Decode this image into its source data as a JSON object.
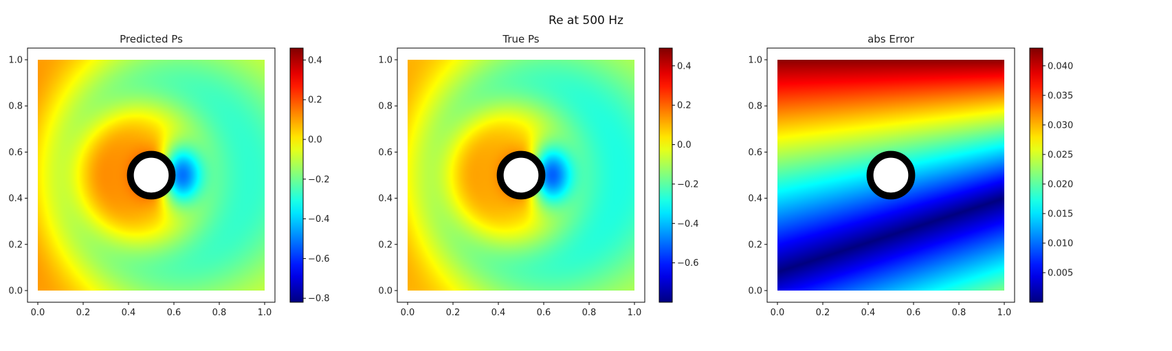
{
  "figure": {
    "suptitle": "Re at 500 Hz"
  },
  "chart_data": [
    {
      "type": "heatmap",
      "title": "Predicted Ps",
      "xlim": [
        0,
        1
      ],
      "ylim": [
        0,
        1
      ],
      "x_ticks": [
        "0.0",
        "0.2",
        "0.4",
        "0.6",
        "0.8",
        "1.0"
      ],
      "y_ticks": [
        "0.0",
        "0.2",
        "0.4",
        "0.6",
        "0.8",
        "1.0"
      ],
      "obstacle": {
        "shape": "circle",
        "center": [
          0.5,
          0.5
        ],
        "radius": 0.1
      },
      "colormap": "jet",
      "colorbar": {
        "min": -0.82,
        "max": 0.46,
        "ticks": [
          0.4,
          0.2,
          0.0,
          -0.2,
          -0.4,
          -0.6,
          -0.8
        ],
        "tick_labels": [
          "0.4",
          "0.2",
          "0.0",
          "−0.2",
          "−0.4",
          "−0.6",
          "−0.8"
        ]
      },
      "field": {
        "pattern": "acoustic_scattering",
        "max_near": [
          0.28,
          0.5
        ],
        "min_near": [
          0.68,
          0.5
        ],
        "value_range": [
          -0.82,
          0.46
        ]
      }
    },
    {
      "type": "heatmap",
      "title": "True Ps",
      "xlim": [
        0,
        1
      ],
      "ylim": [
        0,
        1
      ],
      "x_ticks": [
        "0.0",
        "0.2",
        "0.4",
        "0.6",
        "0.8",
        "1.0"
      ],
      "y_ticks": [
        "0.0",
        "0.2",
        "0.4",
        "0.6",
        "0.8",
        "1.0"
      ],
      "obstacle": {
        "shape": "circle",
        "center": [
          0.5,
          0.5
        ],
        "radius": 0.1
      },
      "colormap": "jet",
      "colorbar": {
        "min": -0.8,
        "max": 0.49,
        "ticks": [
          0.4,
          0.2,
          0.0,
          -0.2,
          -0.4,
          -0.6
        ],
        "tick_labels": [
          "0.4",
          "0.2",
          "0.0",
          "−0.2",
          "−0.4",
          "−0.6"
        ]
      },
      "field": {
        "pattern": "acoustic_scattering",
        "max_near": [
          0.28,
          0.5
        ],
        "min_near": [
          0.68,
          0.5
        ],
        "value_range": [
          -0.8,
          0.49
        ]
      }
    },
    {
      "type": "heatmap",
      "title": "abs Error",
      "xlim": [
        0,
        1
      ],
      "ylim": [
        0,
        1
      ],
      "x_ticks": [
        "0.0",
        "0.2",
        "0.4",
        "0.6",
        "0.8",
        "1.0"
      ],
      "y_ticks": [
        "0.0",
        "0.2",
        "0.4",
        "0.6",
        "0.8",
        "1.0"
      ],
      "obstacle": {
        "shape": "circle",
        "center": [
          0.5,
          0.5
        ],
        "radius": 0.1
      },
      "colormap": "jet",
      "colorbar": {
        "min": 0.0,
        "max": 0.043,
        "ticks": [
          0.04,
          0.035,
          0.03,
          0.025,
          0.02,
          0.015,
          0.01,
          0.005
        ],
        "tick_labels": [
          "0.040",
          "0.035",
          "0.030",
          "0.025",
          "0.020",
          "0.015",
          "0.010",
          "0.005"
        ]
      },
      "field": {
        "pattern": "linear_gradient",
        "min_line": "y = 0.08 + 0.32x",
        "max_at": [
          0.0,
          1.0
        ],
        "value_range": [
          0.0,
          0.043
        ]
      }
    }
  ]
}
